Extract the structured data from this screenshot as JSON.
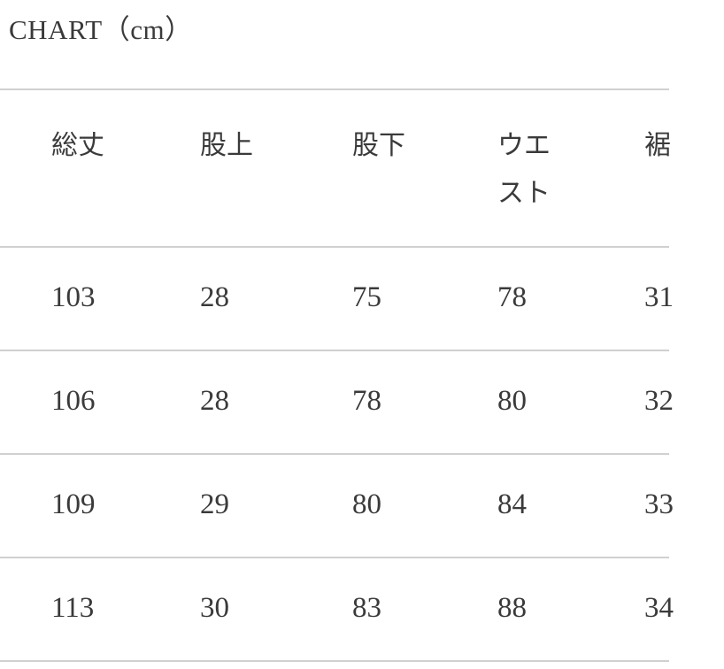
{
  "title": "CHART（cm）",
  "headers": [
    "総丈",
    "股上",
    "股下",
    "ウエスト",
    "裾"
  ],
  "rows": [
    [
      "103",
      "28",
      "75",
      "78",
      "31"
    ],
    [
      "106",
      "28",
      "78",
      "80",
      "32"
    ],
    [
      "109",
      "29",
      "80",
      "84",
      "33"
    ],
    [
      "113",
      "30",
      "83",
      "88",
      "34"
    ]
  ]
}
